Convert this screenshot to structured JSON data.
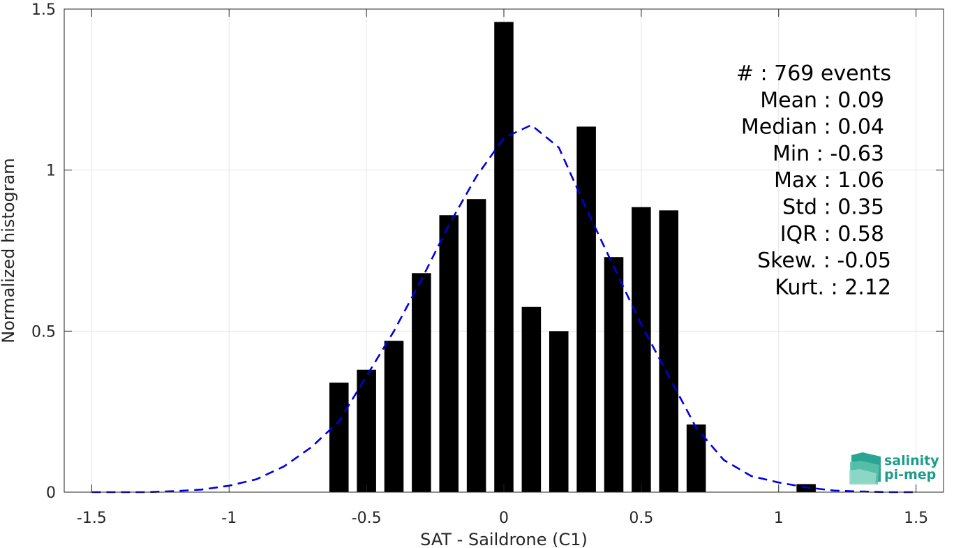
{
  "chart_data": {
    "type": "bar",
    "xlabel": "SAT - Saildrone (C1)",
    "ylabel": "Normalized histogram",
    "xlim": [
      -1.6,
      1.6
    ],
    "ylim": [
      0,
      1.5
    ],
    "xticks": [
      -1.5,
      -1,
      -0.5,
      0,
      0.5,
      1,
      1.5
    ],
    "xtick_labels": [
      "-1.5",
      "-1",
      "-0.5",
      "0",
      "0.5",
      "1",
      "1.5"
    ],
    "yticks": [
      0,
      0.5,
      1,
      1.5
    ],
    "ytick_labels": [
      "0",
      "0.5",
      "1",
      "1.5"
    ],
    "grid": true,
    "bar_color": "#000000",
    "bar_width": 0.07,
    "bars": {
      "x": [
        -0.6,
        -0.5,
        -0.4,
        -0.3,
        -0.2,
        -0.1,
        0.0,
        0.1,
        0.2,
        0.3,
        0.4,
        0.5,
        0.6,
        0.7,
        1.1
      ],
      "values": [
        0.34,
        0.38,
        0.47,
        0.68,
        0.86,
        0.91,
        1.46,
        0.575,
        0.5,
        1.135,
        0.73,
        0.885,
        0.875,
        0.21,
        0.025
      ]
    },
    "fit_curve": {
      "style": "dashed",
      "color": "#0000dd",
      "x": [
        -1.5,
        -1.4,
        -1.3,
        -1.2,
        -1.1,
        -1.0,
        -0.9,
        -0.8,
        -0.7,
        -0.6,
        -0.5,
        -0.4,
        -0.3,
        -0.2,
        -0.1,
        0.0,
        0.1,
        0.2,
        0.3,
        0.4,
        0.5,
        0.6,
        0.7,
        0.8,
        0.9,
        1.0,
        1.1,
        1.2,
        1.3,
        1.4,
        1.5
      ],
      "y": [
        0.0,
        0.0,
        0.0,
        0.003,
        0.008,
        0.02,
        0.04,
        0.08,
        0.14,
        0.22,
        0.36,
        0.5,
        0.66,
        0.83,
        0.98,
        1.1,
        1.14,
        1.07,
        0.88,
        0.7,
        0.52,
        0.36,
        0.2,
        0.1,
        0.05,
        0.03,
        0.015,
        0.005,
        0.002,
        0.0,
        0.0
      ]
    },
    "stats": [
      "#  : 769 events",
      "Mean : 0.09",
      "Median : 0.04",
      "Min : -0.63",
      "Max : 1.06",
      "Std : 0.35",
      "IQR : 0.58",
      "Skew. : -0.05",
      "Kurt. : 2.12"
    ]
  },
  "logo": {
    "line1": "salinity",
    "line2": "pi-mep",
    "color": "#1a9c8a"
  }
}
